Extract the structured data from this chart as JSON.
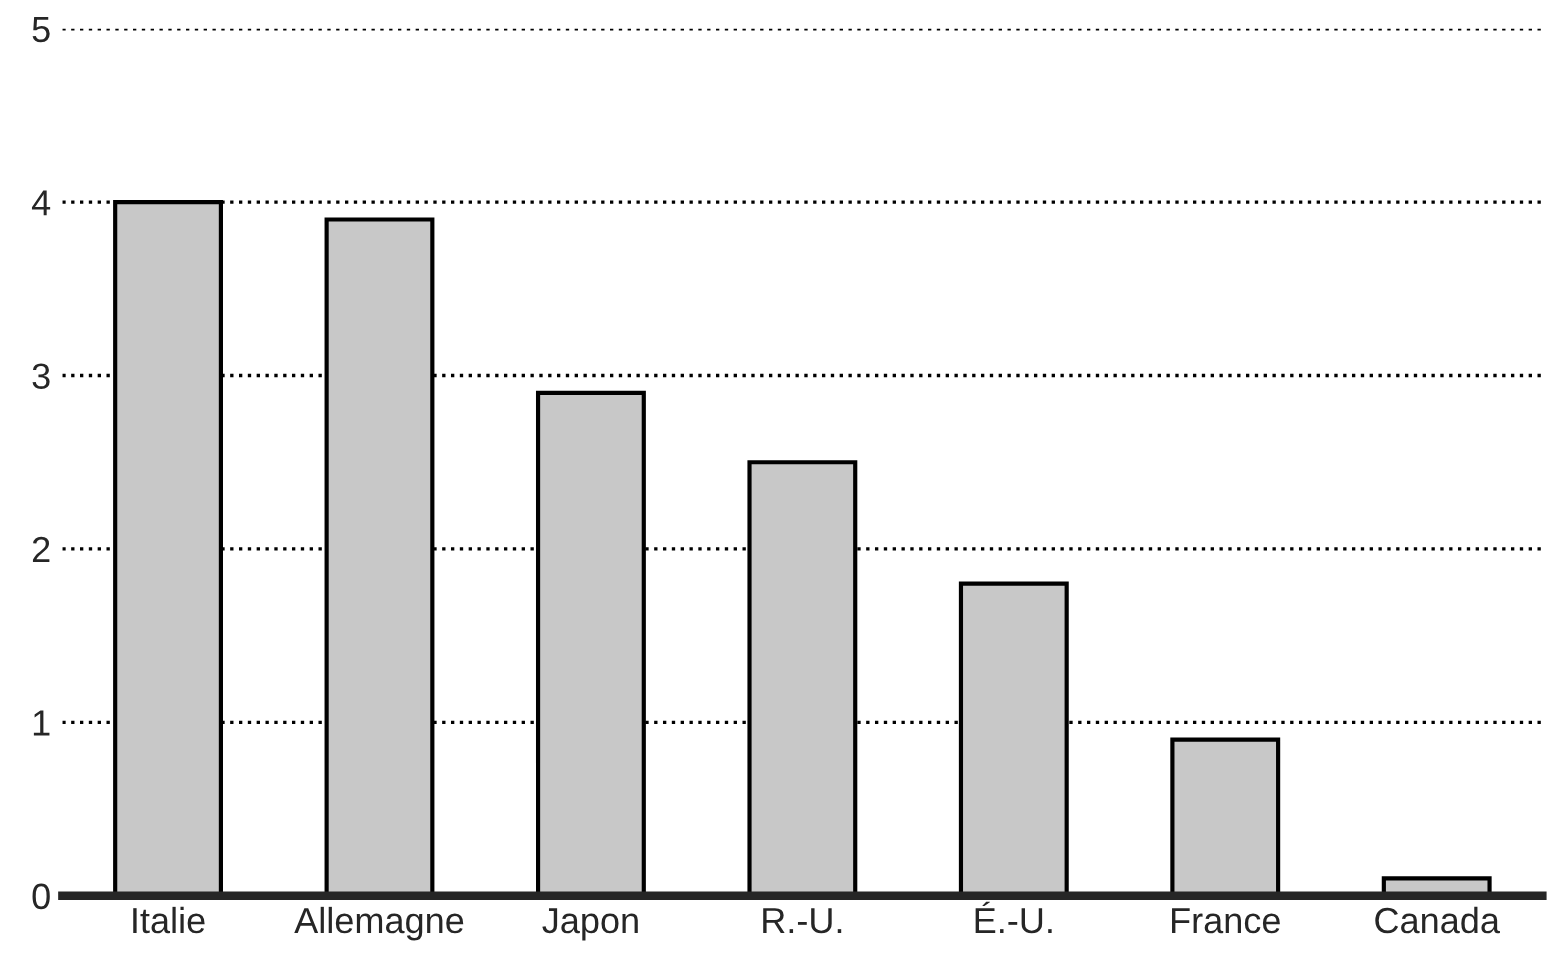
{
  "chart_data": {
    "type": "bar",
    "categories": [
      "Italie",
      "Allemagne",
      "Japon",
      "R.-U.",
      "É.-U.",
      "France",
      "Canada"
    ],
    "values": [
      4.0,
      3.9,
      2.9,
      2.5,
      1.8,
      0.9,
      0.1
    ],
    "color": "#c8c8c8",
    "ylim": [
      0,
      5
    ],
    "yticks": [
      0,
      1,
      2,
      3,
      4,
      5
    ],
    "grid": "y",
    "line_style": "dotted"
  }
}
